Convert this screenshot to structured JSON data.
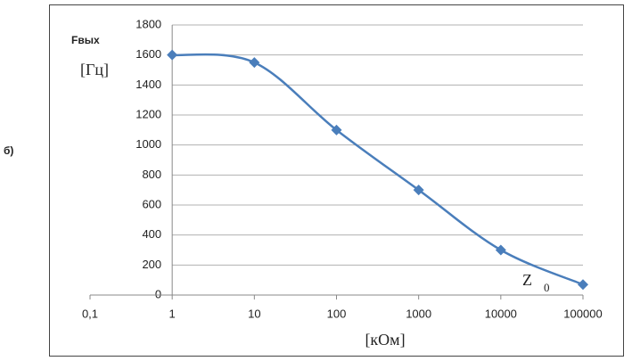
{
  "panel_label": "б)",
  "chart_data": {
    "type": "line",
    "xscale": "log",
    "y_label": "Fвых",
    "y_unit": "[Гц]",
    "x_label": "[кОм]",
    "annotation": "Z",
    "annotation_sub": "0",
    "x": [
      1,
      10,
      100,
      1000,
      10000,
      100000
    ],
    "series": [
      {
        "color": "#4a7ebb",
        "values": [
          1600,
          1550,
          1100,
          700,
          300,
          70
        ]
      }
    ],
    "xlim": [
      0.1,
      100000
    ],
    "xticks": [
      {
        "value": 0.1,
        "label": "0,1"
      },
      1,
      10,
      100,
      1000,
      10000,
      100000
    ],
    "ylim": [
      0,
      1800
    ],
    "yticks": [
      0,
      200,
      400,
      600,
      800,
      1000,
      1200,
      1400,
      1600,
      1800
    ],
    "grid": true
  }
}
